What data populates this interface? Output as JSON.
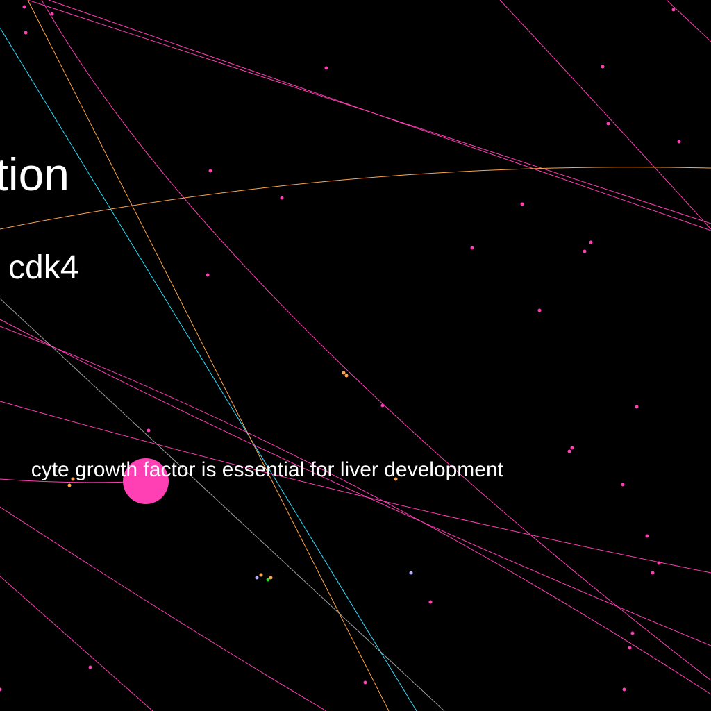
{
  "graph": {
    "background": "#000000",
    "colors": {
      "edge_pink": "#ff3fb4",
      "edge_orange": "#ffa64d",
      "edge_cyan": "#33e0ff",
      "edge_gray": "#9aa0a0",
      "node_pink": "#ff3fb4",
      "node_orange": "#ffa64d",
      "node_lavender": "#b8b0ff",
      "node_green": "#33d633"
    },
    "labels": {
      "top": "tion",
      "middle": "cdk4",
      "bottom": "cyte growth factor is essential for liver development"
    },
    "focus_node": {
      "name": "highlighted-node",
      "color": "#ff3fb4"
    }
  }
}
